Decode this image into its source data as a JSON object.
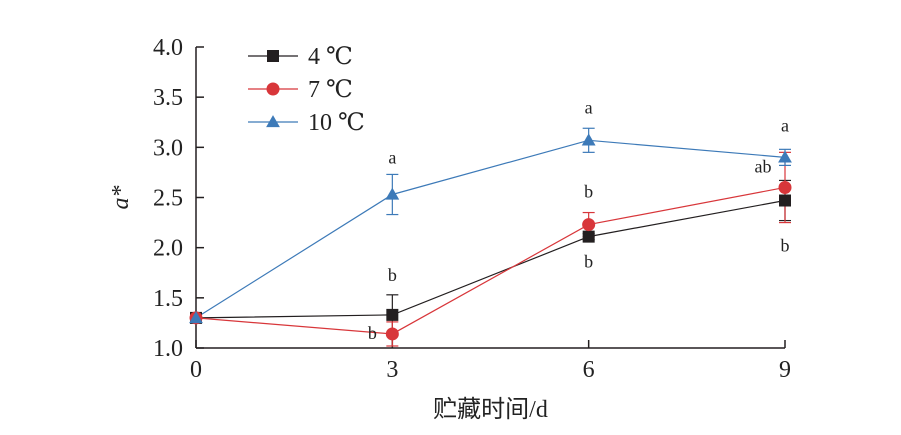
{
  "chart_data": {
    "type": "line",
    "title": "",
    "xlabel": "贮藏时间/d",
    "ylabel": "a*",
    "x": [
      0,
      3,
      6,
      9
    ],
    "xlim": [
      0,
      9
    ],
    "ylim": [
      1.0,
      4.0
    ],
    "x_ticks": [
      "0",
      "3",
      "6",
      "9"
    ],
    "y_ticks": [
      "1.0",
      "1.5",
      "2.0",
      "2.5",
      "3.0",
      "3.5",
      "4.0"
    ],
    "grid": false,
    "legend_position": "top-left",
    "series": [
      {
        "name": "4 ℃",
        "color": "#231f20",
        "marker": "square",
        "values": [
          1.3,
          1.33,
          2.11,
          2.47
        ],
        "errors": [
          0.02,
          0.2,
          0.03,
          0.2
        ],
        "labels": [
          "",
          "b",
          "b",
          "b"
        ]
      },
      {
        "name": "7 ℃",
        "color": "#d8363a",
        "marker": "circle",
        "values": [
          1.3,
          1.14,
          2.23,
          2.6
        ],
        "errors": [
          0.02,
          0.12,
          0.12,
          0.35
        ],
        "labels": [
          "",
          "b",
          "b",
          "ab"
        ]
      },
      {
        "name": "10 ℃",
        "color": "#3d7ab8",
        "marker": "triangle",
        "values": [
          1.3,
          2.53,
          3.07,
          2.9
        ],
        "errors": [
          0.02,
          0.2,
          0.12,
          0.08
        ],
        "labels": [
          "",
          "a",
          "a",
          "a"
        ]
      }
    ]
  }
}
